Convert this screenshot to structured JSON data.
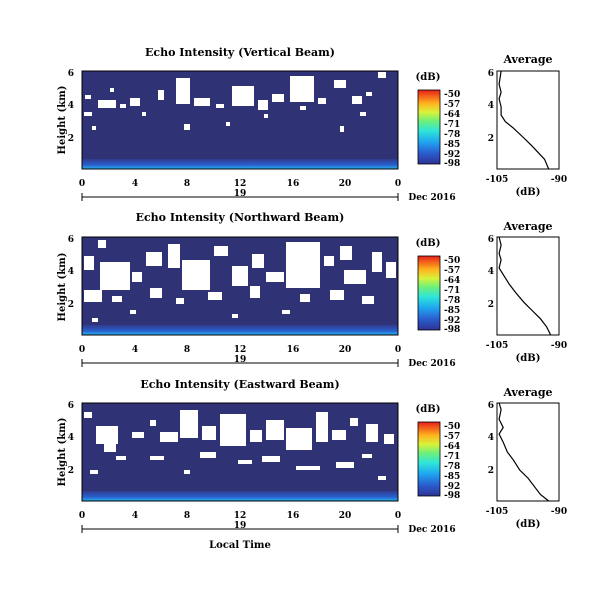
{
  "figure": {
    "shared_xlabel": "Local Time",
    "date_label": "Dec 2016",
    "day_label": "19",
    "colorbar_unit": "(dB)",
    "average_title": "Average",
    "average_xlabel": "(dB)"
  },
  "chart_data": [
    {
      "type": "heatmap",
      "title": "Echo Intensity (Vertical Beam)",
      "ylabel": "Height (km)",
      "xlabel": "",
      "x_ticks": [
        "0",
        "4",
        "8",
        "12",
        "16",
        "20",
        "0"
      ],
      "y_ticks": [
        "6",
        "4",
        "2"
      ],
      "xlim": [
        0,
        24
      ],
      "ylim": [
        0,
        6
      ],
      "value_range_db": [
        -98,
        -50
      ],
      "colorbar_ticks": [
        "-50",
        "-57",
        "-64",
        "-71",
        "-78",
        "-85",
        "-92",
        "-98"
      ],
      "description_of_field": "uniform ~-96 dB background with enhanced echo (-80 to -60 dB) in the lowest 0.3 km; no data (white) gaps mostly above ~3 km",
      "average_profile": {
        "xlim": [
          -105,
          -90
        ],
        "x_ticks": [
          "-105",
          "-90"
        ],
        "y_ticks": [
          "6",
          "4",
          "2"
        ],
        "points": [
          [
            -92.5,
            0.0
          ],
          [
            -93.5,
            0.6
          ],
          [
            -95.0,
            1.0
          ],
          [
            -96.5,
            1.4
          ],
          [
            -98.5,
            1.9
          ],
          [
            -101.0,
            2.5
          ],
          [
            -103.0,
            2.9
          ],
          [
            -104.0,
            3.3
          ],
          [
            -104.0,
            3.8
          ],
          [
            -104.5,
            4.3
          ],
          [
            -104.0,
            4.7
          ],
          [
            -104.5,
            5.2
          ],
          [
            -104.0,
            6.0
          ]
        ]
      }
    },
    {
      "type": "heatmap",
      "title": "Echo Intensity (Northward Beam)",
      "ylabel": "Height (km)",
      "xlabel": "",
      "x_ticks": [
        "0",
        "4",
        "8",
        "12",
        "16",
        "20",
        "0"
      ],
      "y_ticks": [
        "6",
        "4",
        "2"
      ],
      "xlim": [
        0,
        24
      ],
      "ylim": [
        0,
        6
      ],
      "value_range_db": [
        -98,
        -50
      ],
      "colorbar_ticks": [
        "-50",
        "-57",
        "-64",
        "-71",
        "-78",
        "-85",
        "-92",
        "-98"
      ],
      "description_of_field": "uniform ~-96 dB background with enhanced echo in the lowest 0.3 km; large no-data (white) regions between ~2 and 6 km",
      "average_profile": {
        "xlim": [
          -105,
          -90
        ],
        "x_ticks": [
          "-105",
          "-90"
        ],
        "y_ticks": [
          "6",
          "4",
          "2"
        ],
        "points": [
          [
            -92.0,
            0.0
          ],
          [
            -93.0,
            0.5
          ],
          [
            -94.5,
            1.0
          ],
          [
            -96.5,
            1.5
          ],
          [
            -98.5,
            2.0
          ],
          [
            -100.5,
            2.6
          ],
          [
            -102.0,
            3.1
          ],
          [
            -103.5,
            3.7
          ],
          [
            -104.5,
            4.1
          ],
          [
            -104.0,
            4.6
          ],
          [
            -104.5,
            5.0
          ],
          [
            -104.0,
            5.5
          ],
          [
            -104.5,
            6.0
          ]
        ]
      }
    },
    {
      "type": "heatmap",
      "title": "Echo Intensity (Eastward Beam)",
      "ylabel": "Height (km)",
      "xlabel": "Local Time",
      "x_ticks": [
        "0",
        "4",
        "8",
        "12",
        "16",
        "20",
        "0"
      ],
      "y_ticks": [
        "6",
        "4",
        "2"
      ],
      "xlim": [
        0,
        24
      ],
      "ylim": [
        0,
        6
      ],
      "value_range_db": [
        -98,
        -50
      ],
      "colorbar_ticks": [
        "-50",
        "-57",
        "-64",
        "-71",
        "-78",
        "-85",
        "-92",
        "-98"
      ],
      "description_of_field": "uniform ~-96 dB background with enhanced echo in the lowest 0.3 km; scattered no-data (white) regions between ~2 and 6 km",
      "average_profile": {
        "xlim": [
          -105,
          -90
        ],
        "x_ticks": [
          "-105",
          "-90"
        ],
        "y_ticks": [
          "6",
          "4",
          "2"
        ],
        "points": [
          [
            -92.5,
            0.0
          ],
          [
            -94.5,
            0.4
          ],
          [
            -96.0,
            0.9
          ],
          [
            -97.5,
            1.4
          ],
          [
            -99.5,
            1.9
          ],
          [
            -101.0,
            2.5
          ],
          [
            -102.5,
            3.0
          ],
          [
            -103.5,
            3.6
          ],
          [
            -104.5,
            4.1
          ],
          [
            -103.5,
            4.5
          ],
          [
            -104.5,
            5.0
          ],
          [
            -104.0,
            5.6
          ],
          [
            -104.5,
            6.0
          ]
        ]
      }
    }
  ]
}
